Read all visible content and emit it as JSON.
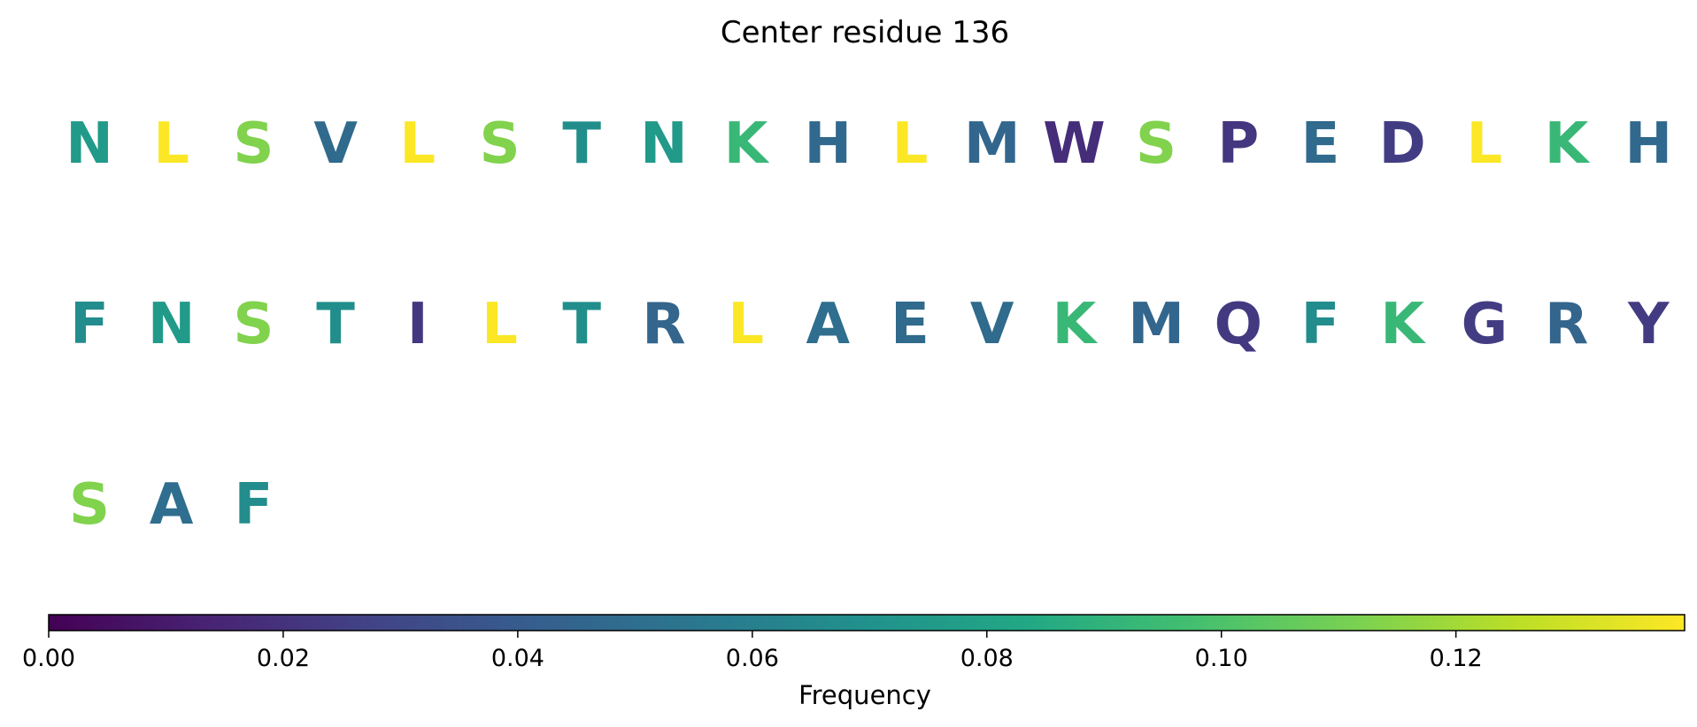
{
  "chart_data": {
    "type": "heatmap",
    "title": "Center residue 136",
    "cells": [
      {
        "letter": "N",
        "value": 0.075
      },
      {
        "letter": "L",
        "value": 0.139
      },
      {
        "letter": "S",
        "value": 0.113
      },
      {
        "letter": "V",
        "value": 0.048
      },
      {
        "letter": "L",
        "value": 0.139
      },
      {
        "letter": "S",
        "value": 0.113
      },
      {
        "letter": "T",
        "value": 0.068
      },
      {
        "letter": "N",
        "value": 0.075
      },
      {
        "letter": "K",
        "value": 0.093
      },
      {
        "letter": "H",
        "value": 0.047
      },
      {
        "letter": "L",
        "value": 0.139
      },
      {
        "letter": "M",
        "value": 0.046
      },
      {
        "letter": "W",
        "value": 0.018
      },
      {
        "letter": "S",
        "value": 0.113
      },
      {
        "letter": "P",
        "value": 0.022
      },
      {
        "letter": "E",
        "value": 0.048
      },
      {
        "letter": "D",
        "value": 0.025
      },
      {
        "letter": "L",
        "value": 0.139
      },
      {
        "letter": "K",
        "value": 0.093
      },
      {
        "letter": "H",
        "value": 0.047
      },
      {
        "letter": "F",
        "value": 0.067
      },
      {
        "letter": "N",
        "value": 0.075
      },
      {
        "letter": "S",
        "value": 0.113
      },
      {
        "letter": "T",
        "value": 0.068
      },
      {
        "letter": "I",
        "value": 0.022
      },
      {
        "letter": "L",
        "value": 0.139
      },
      {
        "letter": "T",
        "value": 0.068
      },
      {
        "letter": "R",
        "value": 0.045
      },
      {
        "letter": "L",
        "value": 0.139
      },
      {
        "letter": "A",
        "value": 0.05
      },
      {
        "letter": "E",
        "value": 0.048
      },
      {
        "letter": "V",
        "value": 0.048
      },
      {
        "letter": "K",
        "value": 0.093
      },
      {
        "letter": "M",
        "value": 0.046
      },
      {
        "letter": "Q",
        "value": 0.023
      },
      {
        "letter": "F",
        "value": 0.067
      },
      {
        "letter": "K",
        "value": 0.093
      },
      {
        "letter": "G",
        "value": 0.025
      },
      {
        "letter": "R",
        "value": 0.045
      },
      {
        "letter": "Y",
        "value": 0.024
      },
      {
        "letter": "S",
        "value": 0.113
      },
      {
        "letter": "A",
        "value": 0.05
      },
      {
        "letter": "F",
        "value": 0.067
      }
    ],
    "columns_per_row": 20,
    "colormap": "viridis",
    "colorbar": {
      "label": "Frequency",
      "range": [
        0,
        0.1395
      ],
      "ticks": [
        0.0,
        0.02,
        0.04,
        0.06,
        0.08,
        0.1,
        0.12
      ],
      "tick_labels": [
        "0.00",
        "0.02",
        "0.04",
        "0.06",
        "0.08",
        "0.10",
        "0.12"
      ],
      "orientation": "horizontal",
      "placement": "bottom"
    },
    "grid": false
  }
}
